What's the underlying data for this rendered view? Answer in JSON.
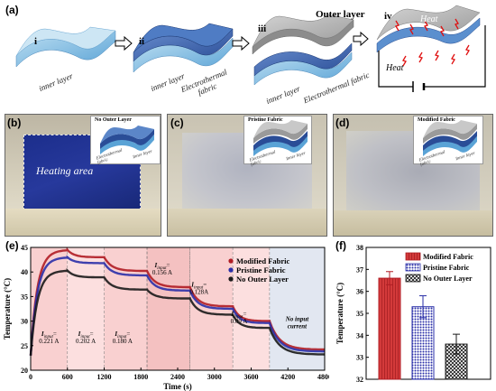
{
  "panel_a": {
    "label": "(a)",
    "steps": [
      {
        "roman": "i",
        "layers": [
          "inner layer"
        ]
      },
      {
        "roman": "ii",
        "layers": [
          "inner layer",
          "Electrothermal fabric"
        ]
      },
      {
        "roman": "iii",
        "layers": [
          "Outer layer",
          "inner layer",
          "Electrothermal fabric"
        ]
      },
      {
        "roman": "iv",
        "heat_labels": [
          "Heat",
          "Heat"
        ]
      }
    ]
  },
  "photos": [
    {
      "label": "(b)",
      "inset_title": "No Outer Layer",
      "inset_layers": [
        "Electrothermal fabric",
        "Inner layer"
      ],
      "area_text": "Heating area"
    },
    {
      "label": "(c)",
      "inset_title": "Pristine Fabric",
      "inset_layers": [
        "Electrothermal fabric",
        "Inner layer"
      ]
    },
    {
      "label": "(d)",
      "inset_title": "Modified Fabric",
      "inset_layers": [
        "Electrothermal fabric",
        "Inner layer"
      ]
    }
  ],
  "colors": {
    "modified": "#b01c24",
    "pristine": "#2a2fa8",
    "no_outer": "#1a1a1a",
    "shade": "#f8c8c8",
    "shade_last": "#dde3ee"
  },
  "chart_data": [
    {
      "panel": "(e)",
      "type": "line",
      "xlabel": "Time (s)",
      "ylabel": "Temperature (°C)",
      "xlim": [
        0,
        4800
      ],
      "ylim": [
        20,
        45
      ],
      "xticks": [
        "0",
        "600",
        "1200",
        "1800",
        "2400",
        "3000",
        "3600",
        "4200",
        "4800"
      ],
      "yticks": [
        "20",
        "25",
        "30",
        "35",
        "40",
        "45"
      ],
      "legend_position": "top-right",
      "current_labels": [
        {
          "name": "I",
          "sub": "input",
          "value": "0.221 A",
          "x": 300,
          "y": 27
        },
        {
          "name": "I",
          "sub": "input",
          "value": "0.202 A",
          "x": 900,
          "y": 27
        },
        {
          "name": "I",
          "sub": "input",
          "value": "0.180 A",
          "x": 1500,
          "y": 27
        },
        {
          "name": "I",
          "sub": "input",
          "value": "0.156 A",
          "x": 2150,
          "y": 41
        },
        {
          "name": "I",
          "sub": "input",
          "value": "0.128A",
          "x": 2750,
          "y": 37
        },
        {
          "name": "I",
          "sub": "input",
          "value": "0.09 A",
          "x": 3400,
          "y": 31
        },
        {
          "name": "No input",
          "sub": "",
          "value": "current",
          "x": 4350,
          "y": 30
        }
      ],
      "segments": [
        {
          "start": 0,
          "end": 600,
          "current": "0.221 A"
        },
        {
          "start": 600,
          "end": 1200,
          "current": "0.202 A"
        },
        {
          "start": 1200,
          "end": 1900,
          "current": "0.180 A"
        },
        {
          "start": 1900,
          "end": 2600,
          "current": "0.156 A"
        },
        {
          "start": 2600,
          "end": 3300,
          "current": "0.128A"
        },
        {
          "start": 3300,
          "end": 3900,
          "current": "0.09 A"
        },
        {
          "start": 3900,
          "end": 4800,
          "current": "No input current"
        }
      ],
      "series": [
        {
          "name": "Modified Fabric",
          "steady": [
            44.5,
            43.0,
            40.2,
            36.9,
            33.0,
            30.0,
            24.2
          ]
        },
        {
          "name": "Pristine Fabric",
          "steady": [
            43.0,
            41.8,
            39.3,
            36.2,
            32.5,
            29.6,
            23.8
          ]
        },
        {
          "name": "No Outer Layer",
          "steady": [
            40.3,
            38.9,
            36.4,
            34.6,
            31.3,
            28.6,
            23.2
          ]
        }
      ]
    },
    {
      "panel": "(f)",
      "type": "bar",
      "ylabel": "Temperature (°C)",
      "ylim": [
        32,
        38
      ],
      "yticks": [
        "32",
        "33",
        "34",
        "35",
        "36",
        "37",
        "38"
      ],
      "legend_position": "top-right",
      "categories": [
        "Modified Fabric",
        "Pristine Fabric",
        "No Outer Layer"
      ],
      "values": [
        36.6,
        35.3,
        33.6
      ],
      "errors": [
        0.3,
        0.5,
        0.45
      ]
    }
  ]
}
